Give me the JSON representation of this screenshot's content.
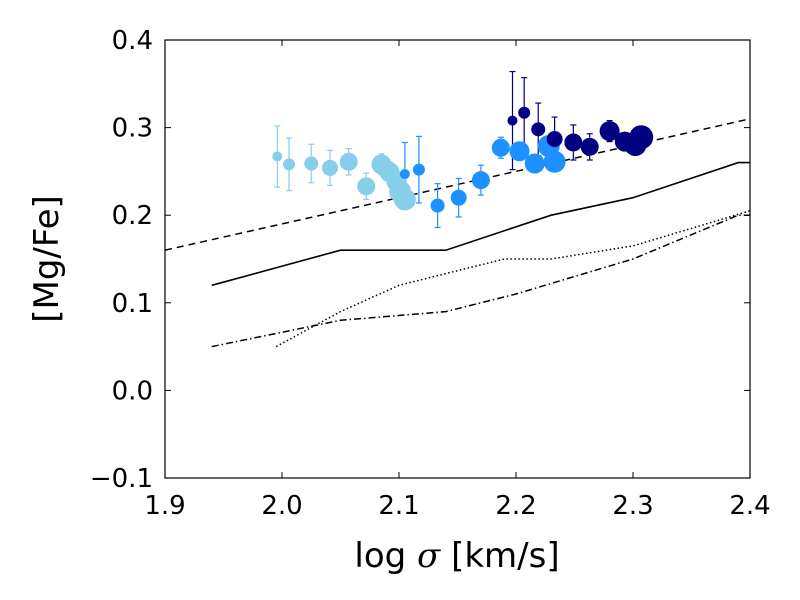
{
  "chart_data": {
    "type": "scatter",
    "xlabel_prefix": "log ",
    "xlabel_symbol": "σ",
    "xlabel_suffix": " [km/s]",
    "ylabel": "[Mg/Fe]",
    "xlim": [
      1.9,
      2.4
    ],
    "ylim": [
      -0.1,
      0.4
    ],
    "xticks": [
      {
        "value": 1.9,
        "label": "1.9"
      },
      {
        "value": 2.0,
        "label": "2.0"
      },
      {
        "value": 2.1,
        "label": "2.1"
      },
      {
        "value": 2.2,
        "label": "2.2"
      },
      {
        "value": 2.3,
        "label": "2.3"
      },
      {
        "value": 2.4,
        "label": "2.4"
      }
    ],
    "yticks": [
      {
        "value": -0.1,
        "label": "−0.1"
      },
      {
        "value": 0.0,
        "label": "0.0"
      },
      {
        "value": 0.1,
        "label": "0.1"
      },
      {
        "value": 0.2,
        "label": "0.2"
      },
      {
        "value": 0.3,
        "label": "0.3"
      },
      {
        "value": 0.4,
        "label": "0.4"
      }
    ],
    "colors": {
      "light_blue": "#87ceeb",
      "dodger_blue": "#1e90ff",
      "navy": "#000080",
      "line": "#000000"
    },
    "lines": [
      {
        "name": "dashed-relation",
        "style": "dashed",
        "x": [
          1.9,
          2.4
        ],
        "y": [
          0.16,
          0.31
        ]
      },
      {
        "name": "solid-relation",
        "style": "solid",
        "x": [
          1.94,
          2.05,
          2.14,
          2.23,
          2.3,
          2.39,
          2.4
        ],
        "y": [
          0.12,
          0.16,
          0.16,
          0.2,
          0.22,
          0.26,
          0.26
        ]
      },
      {
        "name": "dotted-relation",
        "style": "dotted",
        "x": [
          1.995,
          2.05,
          2.1,
          2.19,
          2.23,
          2.3,
          2.4
        ],
        "y": [
          0.05,
          0.09,
          0.12,
          0.15,
          0.15,
          0.165,
          0.205
        ]
      },
      {
        "name": "dashdot-relation",
        "style": "dashdot",
        "x": [
          1.94,
          2.05,
          2.14,
          2.2,
          2.3,
          2.39,
          2.4
        ],
        "y": [
          0.05,
          0.08,
          0.09,
          0.11,
          0.15,
          0.2,
          0.2
        ]
      }
    ],
    "series": [
      {
        "name": "light-blue-bins",
        "color": "light_blue",
        "points": [
          {
            "x": 1.996,
            "y": 0.267,
            "err": 0.035,
            "size": 5
          },
          {
            "x": 2.006,
            "y": 0.258,
            "err": 0.03,
            "size": 6
          },
          {
            "x": 2.025,
            "y": 0.259,
            "err": 0.022,
            "size": 7
          },
          {
            "x": 2.041,
            "y": 0.254,
            "err": 0.02,
            "size": 8
          },
          {
            "x": 2.057,
            "y": 0.261,
            "err": 0.015,
            "size": 9
          },
          {
            "x": 2.072,
            "y": 0.233,
            "err": 0.015,
            "size": 9
          },
          {
            "x": 2.085,
            "y": 0.258,
            "err": 0.012,
            "size": 10
          },
          {
            "x": 2.092,
            "y": 0.249,
            "err": 0.012,
            "size": 10
          },
          {
            "x": 2.098,
            "y": 0.238,
            "err": 0.01,
            "size": 10
          },
          {
            "x": 2.101,
            "y": 0.227,
            "err": 0.01,
            "size": 11
          },
          {
            "x": 2.105,
            "y": 0.218,
            "err": 0.01,
            "size": 11
          }
        ]
      },
      {
        "name": "dodger-blue-bins",
        "color": "dodger_blue",
        "points": [
          {
            "x": 2.105,
            "y": 0.247,
            "err": 0.036,
            "size": 5
          },
          {
            "x": 2.117,
            "y": 0.252,
            "err": 0.038,
            "size": 6
          },
          {
            "x": 2.133,
            "y": 0.211,
            "err": 0.025,
            "size": 7
          },
          {
            "x": 2.151,
            "y": 0.22,
            "err": 0.022,
            "size": 8
          },
          {
            "x": 2.17,
            "y": 0.24,
            "err": 0.017,
            "size": 9
          },
          {
            "x": 2.187,
            "y": 0.277,
            "err": 0.012,
            "size": 9
          },
          {
            "x": 2.203,
            "y": 0.273,
            "err": 0.01,
            "size": 10
          },
          {
            "x": 2.216,
            "y": 0.259,
            "err": 0.01,
            "size": 10
          },
          {
            "x": 2.228,
            "y": 0.279,
            "err": 0.01,
            "size": 11
          },
          {
            "x": 2.233,
            "y": 0.261,
            "err": 0.01,
            "size": 11
          }
        ]
      },
      {
        "name": "navy-bins",
        "color": "navy",
        "points": [
          {
            "x": 2.197,
            "y": 0.308,
            "err": 0.056,
            "size": 5
          },
          {
            "x": 2.207,
            "y": 0.317,
            "err": 0.04,
            "size": 6
          },
          {
            "x": 2.219,
            "y": 0.298,
            "err": 0.03,
            "size": 7
          },
          {
            "x": 2.233,
            "y": 0.287,
            "err": 0.025,
            "size": 8
          },
          {
            "x": 2.249,
            "y": 0.283,
            "err": 0.02,
            "size": 9
          },
          {
            "x": 2.263,
            "y": 0.278,
            "err": 0.015,
            "size": 9
          },
          {
            "x": 2.28,
            "y": 0.296,
            "err": 0.012,
            "size": 10
          },
          {
            "x": 2.293,
            "y": 0.284,
            "err": 0.01,
            "size": 10
          },
          {
            "x": 2.302,
            "y": 0.28,
            "err": 0.01,
            "size": 11
          },
          {
            "x": 2.307,
            "y": 0.289,
            "err": 0.01,
            "size": 12
          }
        ]
      }
    ]
  }
}
